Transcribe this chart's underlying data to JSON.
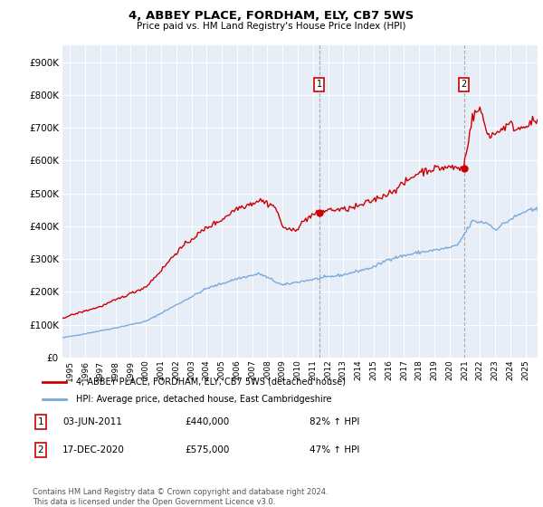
{
  "title": "4, ABBEY PLACE, FORDHAM, ELY, CB7 5WS",
  "subtitle": "Price paid vs. HM Land Registry's House Price Index (HPI)",
  "legend_line1": "4, ABBEY PLACE, FORDHAM, ELY, CB7 5WS (detached house)",
  "legend_line2": "HPI: Average price, detached house, East Cambridgeshire",
  "annotation1_date": "03-JUN-2011",
  "annotation1_value": 440000,
  "annotation1_year": 2011.42,
  "annotation1_text": "£440,000",
  "annotation1_pct": "82% ↑ HPI",
  "annotation2_date": "17-DEC-2020",
  "annotation2_value": 575000,
  "annotation2_year": 2020.95,
  "annotation2_text": "£575,000",
  "annotation2_pct": "47% ↑ HPI",
  "footer": "Contains HM Land Registry data © Crown copyright and database right 2024.\nThis data is licensed under the Open Government Licence v3.0.",
  "red_color": "#cc0000",
  "blue_color": "#7aaadd",
  "background_color": "#e8eef8",
  "ylim": [
    0,
    950000
  ],
  "xlim_start": 1994.5,
  "xlim_end": 2025.8
}
